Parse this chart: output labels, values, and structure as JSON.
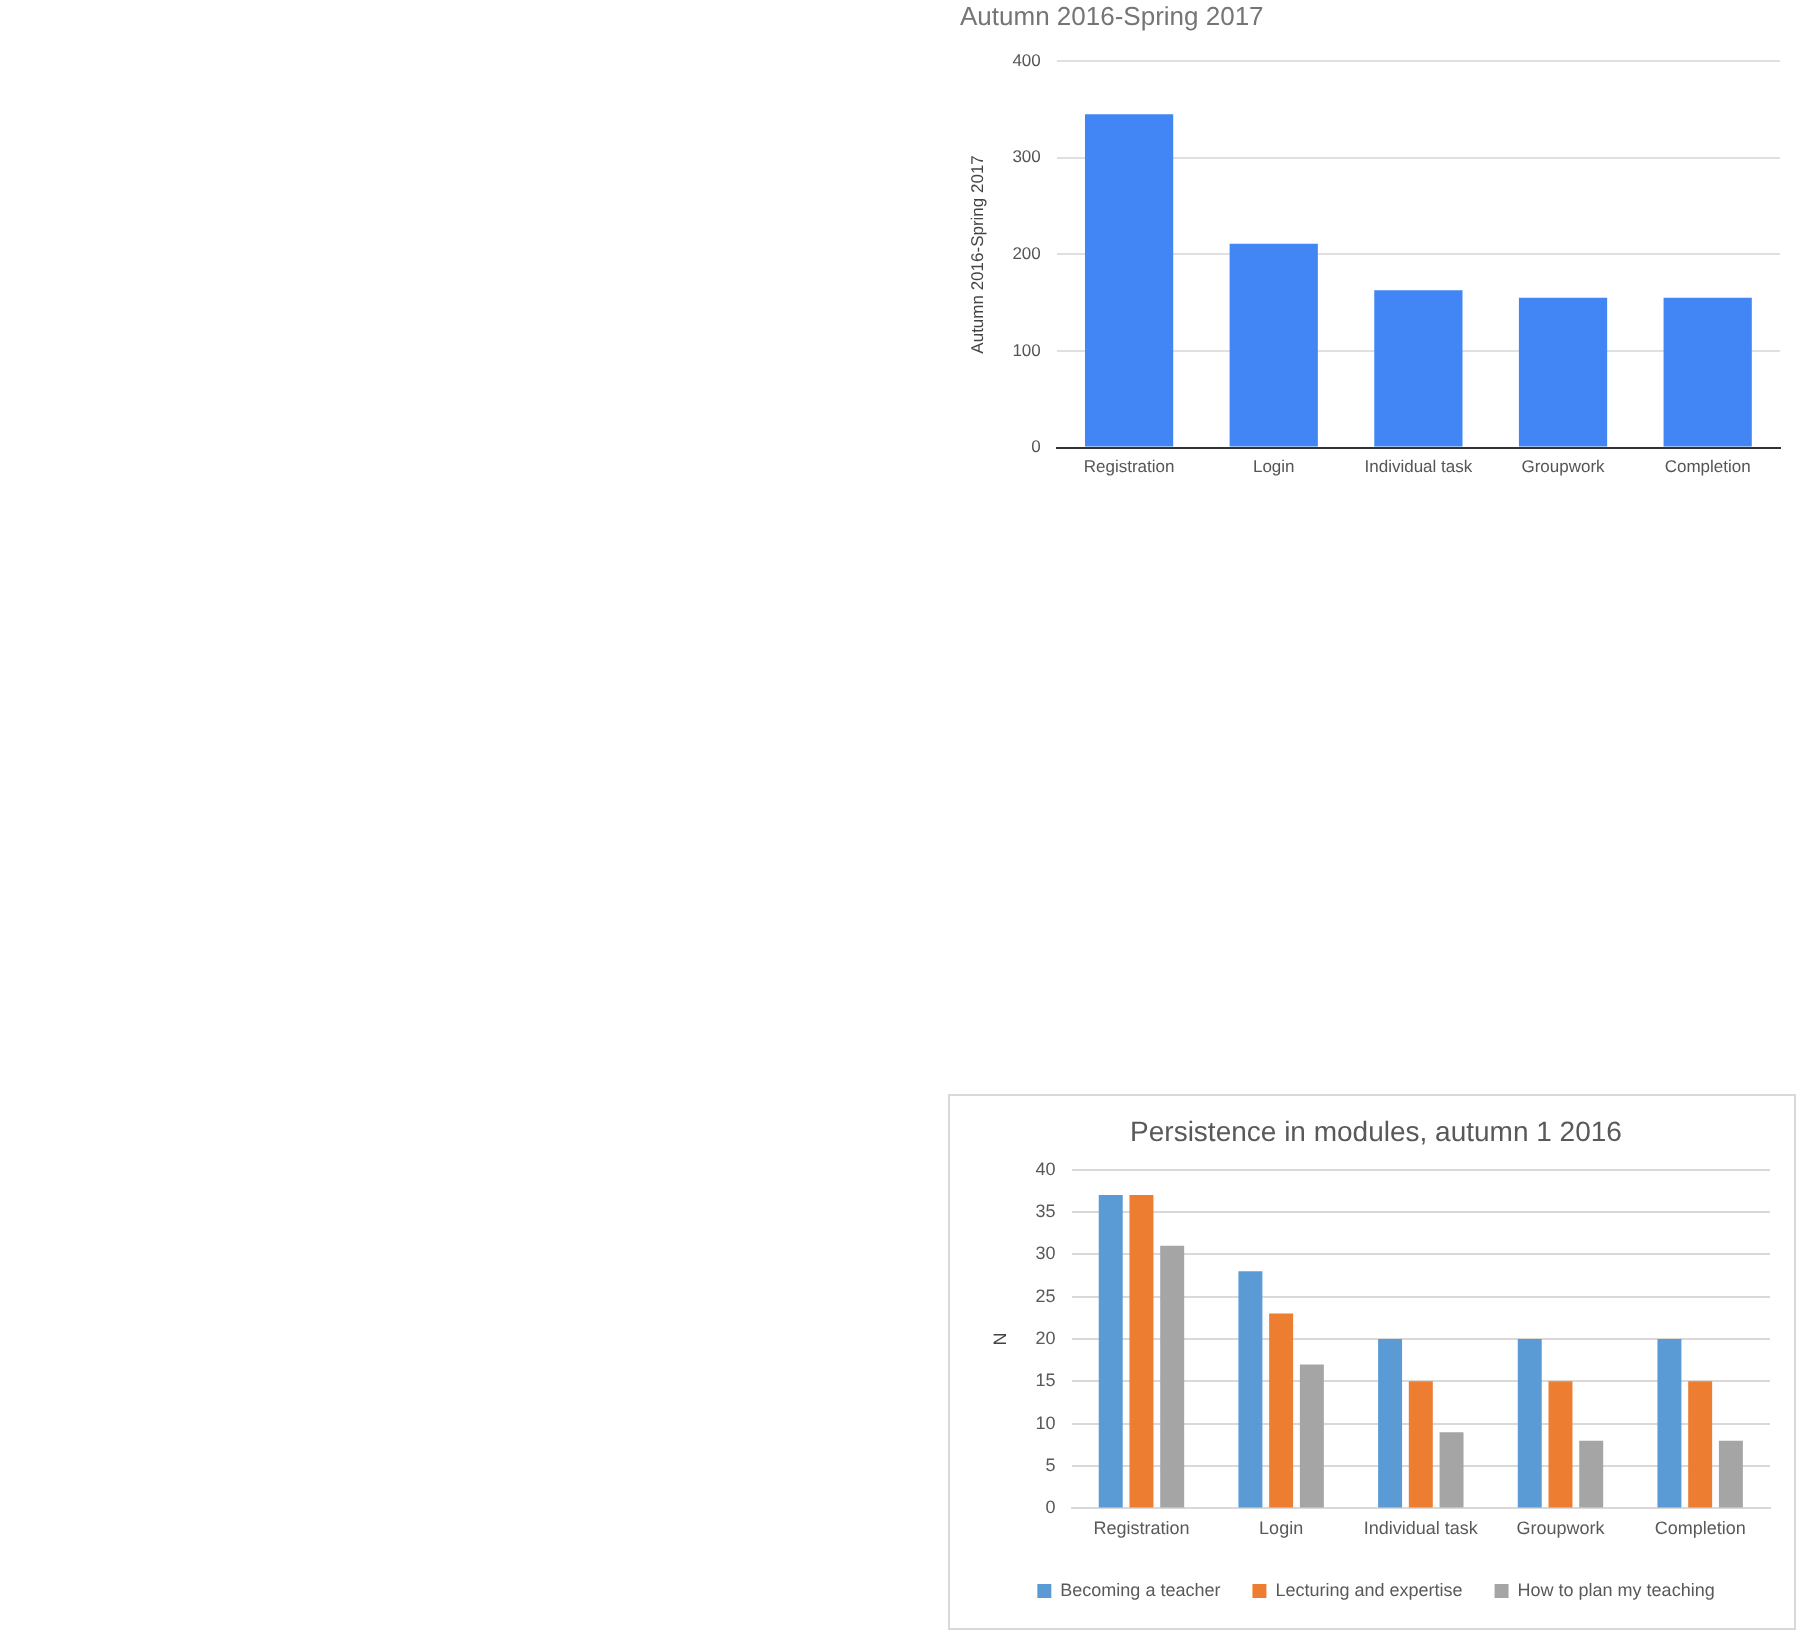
{
  "chart_data": [
    {
      "type": "bar",
      "title": "Autumn 2016-Spring 2017",
      "ylabel": "Autumn 2016-Spring 2017",
      "categories": [
        "Registration",
        "Login",
        "Individual task",
        "Groupwork",
        "Completion"
      ],
      "values": [
        345,
        211,
        163,
        155,
        155
      ],
      "color": "#4285f4",
      "ylim": [
        0,
        400
      ],
      "yticks": [
        0,
        100,
        200,
        300,
        400
      ],
      "grid": "y",
      "legend": false
    },
    {
      "type": "bar",
      "title": "Persistence in modules, autumn 1 2016",
      "ylabel": "N",
      "categories": [
        "Registration",
        "Login",
        "Individual task",
        "Groupwork",
        "Completion"
      ],
      "series": [
        {
          "name": "Becoming a teacher",
          "color": "#5b9bd5",
          "values": [
            37,
            28,
            20,
            20,
            20
          ]
        },
        {
          "name": "Lecturing and expertise",
          "color": "#ed7d31",
          "values": [
            37,
            23,
            15,
            15,
            15
          ]
        },
        {
          "name": "How to plan my teaching",
          "color": "#a5a5a5",
          "values": [
            31,
            17,
            9,
            8,
            8
          ]
        }
      ],
      "ylim": [
        0,
        40
      ],
      "yticks": [
        0,
        5,
        10,
        15,
        20,
        25,
        30,
        35,
        40
      ],
      "grid": "y",
      "legend": "bottom"
    }
  ]
}
